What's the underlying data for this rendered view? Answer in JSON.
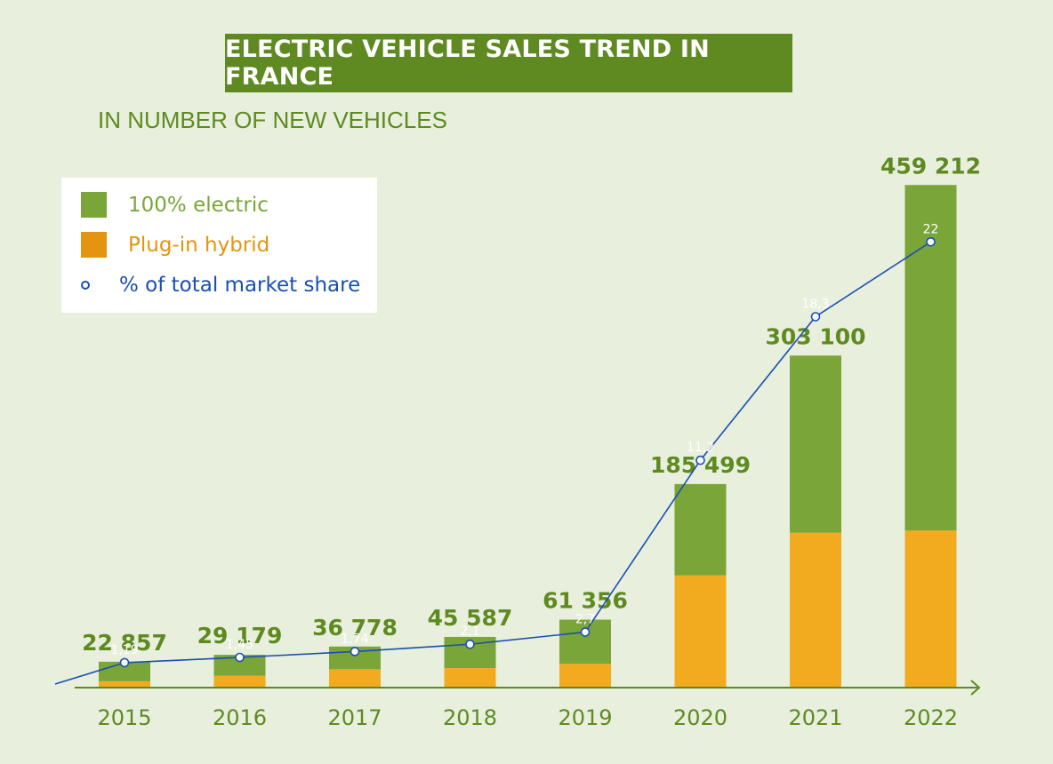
{
  "title": "ELECTRIC VEHICLE SALES TREND IN FRANCE",
  "subtitle": "IN NUMBER OF NEW VEHICLES",
  "legend": {
    "electric": "100% electric",
    "hybrid": "Plug-in hybrid",
    "share": "% of total market share"
  },
  "colors": {
    "background": "#e8efdc",
    "electric": "#7aa538",
    "hybrid": "#f2ab1f",
    "hybrid_legend": "#e39510",
    "line": "#1a4fb4",
    "title_bg": "#5e8a21",
    "total_label": "#5e8a21"
  },
  "chart_data": {
    "type": "bar",
    "stacked": true,
    "categories": [
      "2015",
      "2016",
      "2017",
      "2018",
      "2019",
      "2020",
      "2021",
      "2022"
    ],
    "series": [
      {
        "name": "Plug-in hybrid",
        "values": [
          5000,
          10000,
          16000,
          17000,
          21000,
          102000,
          141000,
          143000
        ]
      },
      {
        "name": "100% electric",
        "values": [
          17857,
          19179,
          20778,
          28587,
          40356,
          83499,
          162100,
          316212
        ]
      }
    ],
    "totals": [
      22857,
      29179,
      36778,
      45587,
      61356,
      185499,
      303100,
      459212
    ],
    "total_labels": [
      "22 857",
      "29 179",
      "36 778",
      "45 587",
      "61 356",
      "185 499",
      "303 100",
      "459 212"
    ],
    "line_series": {
      "name": "% of total market share",
      "values": [
        1.19,
        1.45,
        1.74,
        2.1,
        2.7,
        11.2,
        18.3,
        22
      ],
      "labels": [
        "1,19",
        "1,45",
        "1,74",
        "2,1",
        "2,7",
        "11,2",
        "18,3",
        "22"
      ]
    },
    "ylim": [
      0,
      470000
    ],
    "share_lim": [
      0,
      25
    ],
    "grid": false,
    "legend_position": "top-left"
  }
}
